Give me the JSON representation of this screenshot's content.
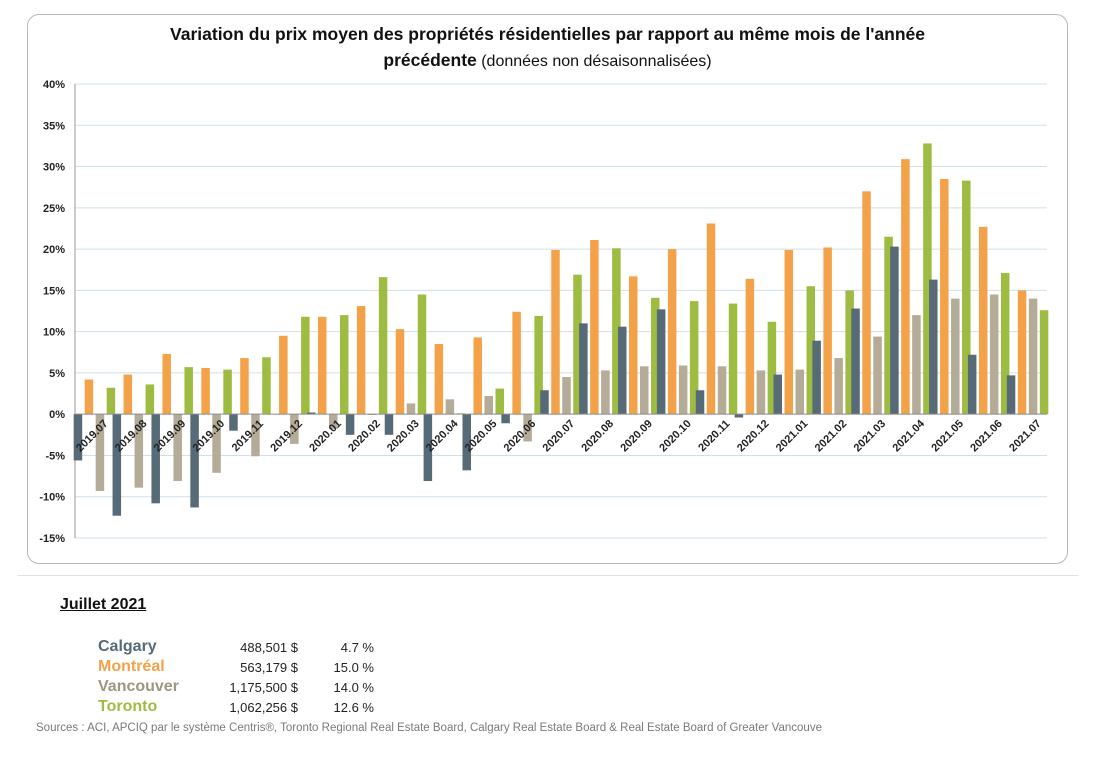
{
  "title_line1": "Variation  du prix moyen des propriétés  résidentielles  par rapport  au même mois de l'année",
  "title_line2_bold": "précédente",
  "title_line2_note": " (données non désaisonnalisées)",
  "summary": {
    "title": "Juillet 2021",
    "rows": [
      {
        "city": "Calgary",
        "price": "488,501 $",
        "pct": "4.7 %",
        "color": "#566a78"
      },
      {
        "city": "Montréal",
        "price": "563,179 $",
        "pct": "15.0 %",
        "color": "#f4a24a"
      },
      {
        "city": "Vancouver",
        "price": "1,175,500 $",
        "pct": "14.0 %",
        "color": "#9e9582"
      },
      {
        "city": "Toronto",
        "price": "1,062,256 $",
        "pct": "12.6 %",
        "color": "#9fbc42"
      }
    ]
  },
  "sources": "Sources : ACI, APCIQ par le système Centris®, Toronto Regional Real Estate Board, Calgary Real Estate Board & Real Estate Board of Greater Vancouve",
  "chart_data": {
    "type": "bar",
    "ylim": [
      -15,
      40
    ],
    "y_ticks": [
      40,
      35,
      30,
      25,
      20,
      15,
      10,
      5,
      0,
      -5,
      -10,
      -15
    ],
    "y_tick_labels": [
      "40%",
      "35%",
      "30%",
      "25%",
      "20%",
      "15%",
      "10%",
      "5%",
      "0%",
      "-5%",
      "-10%",
      "-15%"
    ],
    "grid": true,
    "categories": [
      "2019.07",
      "2019.08",
      "2019.09",
      "2019.10",
      "2019.11",
      "2019.12",
      "2020.01",
      "2020.02",
      "2020.03",
      "2020.04",
      "2020.05",
      "2020.06",
      "2020.07",
      "2020.08",
      "2020.09",
      "2020.10",
      "2020.11",
      "2020.12",
      "2021.01",
      "2021.02",
      "2021.03",
      "2021.04",
      "2021.05",
      "2021.06",
      "2021.07"
    ],
    "series": [
      {
        "name": "Calgary",
        "color": "#566a78",
        "values": [
          -5.6,
          -12.3,
          -10.8,
          -11.3,
          -2.0,
          0,
          0.2,
          -2.5,
          -2.5,
          -8.1,
          -6.8,
          -1.1,
          2.9,
          11.0,
          10.6,
          12.7,
          2.9,
          -0.4,
          4.8,
          8.9,
          12.8,
          20.3,
          16.3,
          7.2,
          4.7
        ]
      },
      {
        "name": "Montréal",
        "color": "#f4a24a",
        "values": [
          4.2,
          4.8,
          7.3,
          5.6,
          6.8,
          9.5,
          11.8,
          13.1,
          10.3,
          8.5,
          9.3,
          12.4,
          19.9,
          21.1,
          16.7,
          20.0,
          23.1,
          16.4,
          19.9,
          20.2,
          27.0,
          30.9,
          28.5,
          22.7,
          15.0
        ]
      },
      {
        "name": "Vancouver",
        "color": "#b4ab98",
        "values": [
          -9.3,
          -8.9,
          -8.1,
          -7.1,
          -5.1,
          -3.6,
          -1.8,
          -0.1,
          1.3,
          1.8,
          2.2,
          -3.3,
          4.5,
          5.3,
          5.8,
          5.9,
          5.8,
          5.3,
          5.4,
          6.8,
          9.4,
          12.0,
          14.0,
          14.5,
          14.0
        ]
      },
      {
        "name": "Toronto",
        "color": "#9fbc42",
        "values": [
          3.2,
          3.6,
          5.7,
          5.4,
          6.9,
          11.8,
          12.0,
          16.6,
          14.5,
          0.1,
          3.1,
          11.9,
          16.9,
          20.1,
          14.1,
          13.7,
          13.4,
          11.2,
          15.5,
          15.0,
          21.5,
          32.8,
          28.3,
          17.1,
          12.6
        ]
      }
    ]
  }
}
